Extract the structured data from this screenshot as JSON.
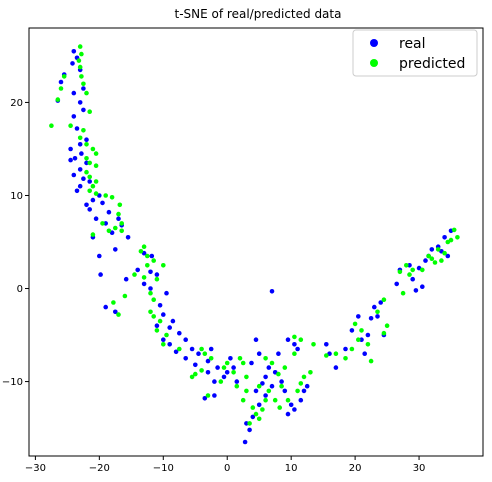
{
  "chart_data": {
    "type": "scatter",
    "title": "t-SNE of real/predicted data",
    "xlabel": "",
    "ylabel": "",
    "xlim": [
      -31,
      40
    ],
    "ylim": [
      -18,
      28
    ],
    "xticks": [
      -30,
      -20,
      -10,
      0,
      10,
      20,
      30
    ],
    "yticks": [
      -10,
      0,
      10,
      20
    ],
    "legend_position": "upper right",
    "grid": false,
    "series": [
      {
        "name": "real",
        "color": "#0000ff",
        "points": [
          [
            -24,
            25.5
          ],
          [
            -23.5,
            24.8
          ],
          [
            -24.2,
            24.2
          ],
          [
            -23,
            23.5
          ],
          [
            -25.5,
            23
          ],
          [
            -26,
            22.2
          ],
          [
            -22.5,
            21.5
          ],
          [
            -24,
            21
          ],
          [
            -26.5,
            20.2
          ],
          [
            -23,
            20
          ],
          [
            -22.5,
            19.2
          ],
          [
            -24,
            18.5
          ],
          [
            -23.5,
            17.2
          ],
          [
            -22,
            16
          ],
          [
            -23,
            15.5
          ],
          [
            -24.5,
            15
          ],
          [
            -22.8,
            14.5
          ],
          [
            -23.8,
            14
          ],
          [
            -24.5,
            13.8
          ],
          [
            -22,
            13.5
          ],
          [
            -23,
            12.8
          ],
          [
            -24,
            12.2
          ],
          [
            -22.5,
            11.8
          ],
          [
            -21.5,
            11.5
          ],
          [
            -23,
            11
          ],
          [
            -23.5,
            10.5
          ],
          [
            -20,
            10
          ],
          [
            -21,
            9.5
          ],
          [
            -19.5,
            9.2
          ],
          [
            -22,
            9
          ],
          [
            -21.5,
            8.5
          ],
          [
            -18.5,
            8.2
          ],
          [
            -20.5,
            7.5
          ],
          [
            -17,
            7.5
          ],
          [
            -19,
            7
          ],
          [
            -16.5,
            6.8
          ],
          [
            -18,
            6
          ],
          [
            -15.5,
            5.5
          ],
          [
            -21,
            5.5
          ],
          [
            -20,
            3.5
          ],
          [
            -17.5,
            4.2
          ],
          [
            -19.8,
            1.5
          ],
          [
            -13,
            3.8
          ],
          [
            -11.8,
            3.5
          ],
          [
            -14,
            2
          ],
          [
            -12,
            1.8
          ],
          [
            -11,
            1.5
          ],
          [
            -15.8,
            1
          ],
          [
            -13,
            0.5
          ],
          [
            -12,
            0
          ],
          [
            -9.5,
            -0.5
          ],
          [
            -10.5,
            -1.8
          ],
          [
            -19,
            -2
          ],
          [
            -17.5,
            -2.5
          ],
          [
            -10,
            -2.8
          ],
          [
            -8.5,
            -3.5
          ],
          [
            -11,
            -4
          ],
          [
            -9,
            -4.2
          ],
          [
            -7.5,
            -4.8
          ],
          [
            -10,
            -5.5
          ],
          [
            -6.5,
            -5.5
          ],
          [
            -9,
            -6
          ],
          [
            -5.5,
            -6.5
          ],
          [
            -8,
            -6.8
          ],
          [
            -4.5,
            -7
          ],
          [
            -6.5,
            -7.5
          ],
          [
            -2.5,
            -6.5
          ],
          [
            -3,
            -7.8
          ],
          [
            -5,
            -8.2
          ],
          [
            -1.5,
            -8.5
          ],
          [
            -3,
            -9
          ],
          [
            -2,
            -10
          ],
          [
            -0.5,
            -9.5
          ],
          [
            0.5,
            -7.5
          ],
          [
            1,
            -8.5
          ],
          [
            0,
            -9
          ],
          [
            1.5,
            -10
          ],
          [
            -2,
            -11.5
          ],
          [
            -3.5,
            -11.8
          ],
          [
            3,
            -14.5
          ],
          [
            3.5,
            -15.2
          ],
          [
            4,
            -13.8
          ],
          [
            2.8,
            -16.5
          ],
          [
            5,
            -12.5
          ],
          [
            6,
            -11.5
          ],
          [
            4.5,
            -11
          ],
          [
            5.5,
            -10.2
          ],
          [
            6,
            -9.5
          ],
          [
            7,
            -10.5
          ],
          [
            3.8,
            -8
          ],
          [
            4.5,
            -5.5
          ],
          [
            5,
            -7
          ],
          [
            6.5,
            -8.5
          ],
          [
            7.5,
            -9
          ],
          [
            8.5,
            -10
          ],
          [
            9,
            -11
          ],
          [
            10,
            -12.5
          ],
          [
            9.5,
            -13.5
          ],
          [
            10.5,
            -13
          ],
          [
            11.5,
            -12
          ],
          [
            12,
            -11
          ],
          [
            12.5,
            -10.5
          ],
          [
            8,
            -7
          ],
          [
            9.5,
            -5.5
          ],
          [
            10.5,
            -6
          ],
          [
            11,
            -6.5
          ],
          [
            7,
            -0.3
          ],
          [
            15.5,
            -6
          ],
          [
            16,
            -7
          ],
          [
            17,
            -8.5
          ],
          [
            18.5,
            -6.5
          ],
          [
            19.5,
            -4.5
          ],
          [
            20.5,
            -3
          ],
          [
            21,
            -5.5
          ],
          [
            22,
            -5
          ],
          [
            23,
            -2
          ],
          [
            24,
            -1.5
          ],
          [
            23.5,
            -3
          ],
          [
            24.5,
            -5
          ],
          [
            22.5,
            -3.2
          ],
          [
            21.5,
            -7
          ],
          [
            26.5,
            0.5
          ],
          [
            27,
            2
          ],
          [
            28.5,
            2.5
          ],
          [
            29,
            1
          ],
          [
            30,
            2.2
          ],
          [
            31,
            3
          ],
          [
            31.5,
            3.5
          ],
          [
            32,
            4.2
          ],
          [
            33,
            4.5
          ],
          [
            33.5,
            4
          ],
          [
            34,
            5.5
          ],
          [
            35,
            6.2
          ],
          [
            34.5,
            3.5
          ],
          [
            30.5,
            0.2
          ],
          [
            29.5,
            -0.2
          ]
        ]
      },
      {
        "name": "predicted",
        "color": "#00ff00",
        "points": [
          [
            -23,
            26
          ],
          [
            -22.8,
            25.2
          ],
          [
            -23.2,
            24.5
          ],
          [
            -23,
            23.8
          ],
          [
            -22.8,
            22.8
          ],
          [
            -22.5,
            22
          ],
          [
            -25.5,
            22.8
          ],
          [
            -26,
            21.5
          ],
          [
            -22,
            21
          ],
          [
            -26.5,
            20.3
          ],
          [
            -21.5,
            19
          ],
          [
            -27.5,
            17.5
          ],
          [
            -24.5,
            17.5
          ],
          [
            -22.5,
            17
          ],
          [
            -23,
            16.2
          ],
          [
            -22,
            15.5
          ],
          [
            -21,
            15
          ],
          [
            -20.5,
            14.5
          ],
          [
            -22,
            14
          ],
          [
            -21.5,
            13.5
          ],
          [
            -20.5,
            13.2
          ],
          [
            -22,
            12.5
          ],
          [
            -21.5,
            12
          ],
          [
            -20.5,
            11.5
          ],
          [
            -21,
            11
          ],
          [
            -21.5,
            10.5
          ],
          [
            -20.5,
            10.2
          ],
          [
            -19,
            10
          ],
          [
            -18,
            9.8
          ],
          [
            -16.8,
            9
          ],
          [
            -19.5,
            7
          ],
          [
            -17,
            8
          ],
          [
            -16.5,
            7
          ],
          [
            -17.5,
            6.5
          ],
          [
            -18.5,
            6.2
          ],
          [
            -16.5,
            6.2
          ],
          [
            -21,
            5.8
          ],
          [
            -13.5,
            4
          ],
          [
            -13,
            4.5
          ],
          [
            -12.5,
            3.5
          ],
          [
            -11.5,
            3
          ],
          [
            -10,
            2.5
          ],
          [
            -12.5,
            2.5
          ],
          [
            -14.5,
            1.5
          ],
          [
            -13,
            1.2
          ],
          [
            -11,
            1
          ],
          [
            -12,
            -0.5
          ],
          [
            -16,
            -0.8
          ],
          [
            -11.5,
            -1.2
          ],
          [
            -12,
            -2.5
          ],
          [
            -17.8,
            -1.5
          ],
          [
            -17,
            -2.8
          ],
          [
            -11.5,
            -3
          ],
          [
            -10.5,
            -3.5
          ],
          [
            -11,
            -4.5
          ],
          [
            -10,
            -6
          ],
          [
            -9.5,
            -5
          ],
          [
            -7.5,
            -6.5
          ],
          [
            -5.5,
            -9.5
          ],
          [
            -5,
            -9.2
          ],
          [
            -4,
            -6.5
          ],
          [
            -3.5,
            -7
          ],
          [
            -2.5,
            -7.5
          ],
          [
            -4,
            -8.8
          ],
          [
            -3,
            -11.5
          ],
          [
            -1,
            -10
          ],
          [
            -0.5,
            -8.5
          ],
          [
            0,
            -8
          ],
          [
            1,
            -9
          ],
          [
            2,
            -7.5
          ],
          [
            2.5,
            -8
          ],
          [
            3,
            -9.5
          ],
          [
            1.5,
            -10.5
          ],
          [
            3,
            -11
          ],
          [
            2.5,
            -12
          ],
          [
            4,
            -12.8
          ],
          [
            4.5,
            -13.5
          ],
          [
            3.5,
            -14.5
          ],
          [
            5,
            -14
          ],
          [
            5.5,
            -13
          ],
          [
            6,
            -12
          ],
          [
            5,
            -10.5
          ],
          [
            6.5,
            -11
          ],
          [
            6,
            -7.5
          ],
          [
            7,
            -8
          ],
          [
            8,
            -9.2
          ],
          [
            8.5,
            -10.5
          ],
          [
            7.5,
            -12
          ],
          [
            8.2,
            -12.8
          ],
          [
            9.5,
            -12
          ],
          [
            11,
            -11
          ],
          [
            11.5,
            -10.2
          ],
          [
            12,
            -9.5
          ],
          [
            13,
            -9
          ],
          [
            9,
            -8.5
          ],
          [
            10.5,
            -7
          ],
          [
            10.5,
            -5.2
          ],
          [
            11.5,
            -5.5
          ],
          [
            13.5,
            -6
          ],
          [
            15.5,
            -7.2
          ],
          [
            17,
            -7
          ],
          [
            18.5,
            -7.5
          ],
          [
            19.5,
            -6.5
          ],
          [
            20.5,
            -5.5
          ],
          [
            20,
            -3.8
          ],
          [
            21,
            -4.5
          ],
          [
            22,
            -6
          ],
          [
            22.5,
            -7.8
          ],
          [
            23.5,
            -2.5
          ],
          [
            24.5,
            -1.2
          ],
          [
            25,
            -4
          ],
          [
            24.5,
            -4.8
          ],
          [
            27,
            1.8
          ],
          [
            28,
            2.5
          ],
          [
            28.5,
            1.5
          ],
          [
            27.5,
            -0.5
          ],
          [
            29,
            2
          ],
          [
            30.5,
            2
          ],
          [
            31.5,
            3.5
          ],
          [
            32,
            3.2
          ],
          [
            33,
            4.2
          ],
          [
            34,
            3.8
          ],
          [
            35,
            5.2
          ],
          [
            35.5,
            6.3
          ],
          [
            36,
            5.5
          ],
          [
            34.5,
            5
          ],
          [
            33.5,
            3
          ],
          [
            32.5,
            2.8
          ]
        ]
      }
    ]
  }
}
